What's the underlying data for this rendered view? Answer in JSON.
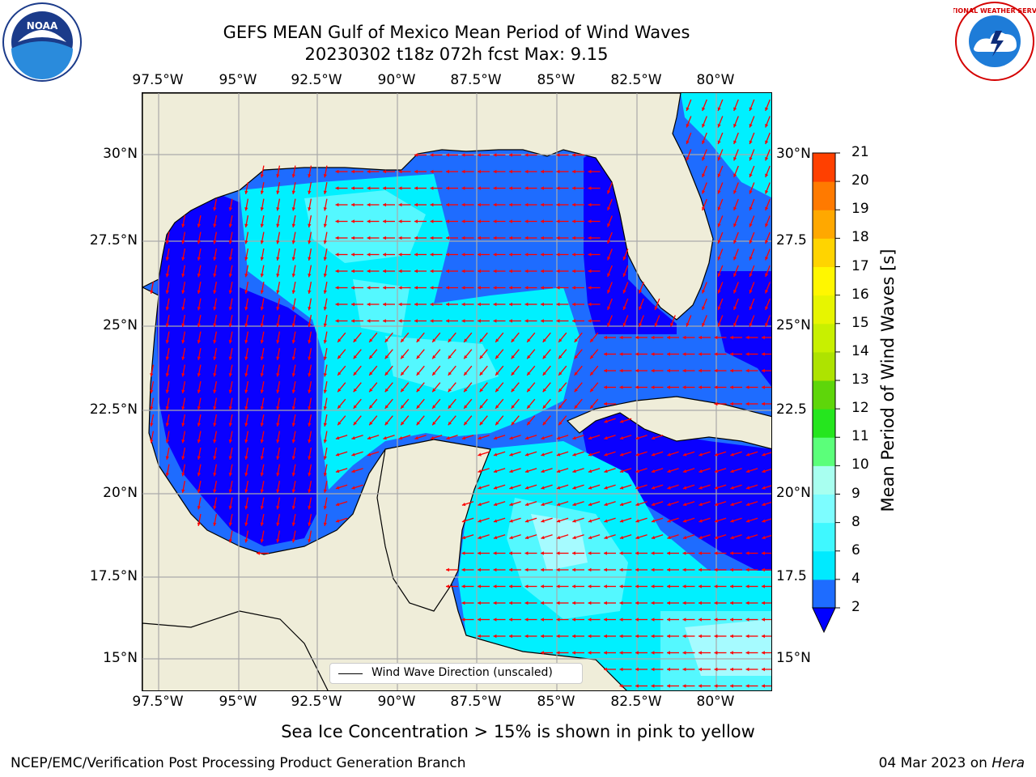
{
  "header": {
    "title_line1": "GEFS MEAN Gulf of Mexico Mean Period of Wind Waves",
    "title_line2": "20230302 t18z 072h fcst   Max: 9.15"
  },
  "axes": {
    "lon_labels": [
      "97.5°W",
      "95°W",
      "92.5°W",
      "90°W",
      "87.5°W",
      "85°W",
      "82.5°W",
      "80°W"
    ],
    "lat_labels_left": [
      "30°N",
      "27.5°N",
      "25°N",
      "22.5°N",
      "20°N",
      "17.5°N",
      "15°N"
    ],
    "lat_labels_right": [
      "30°N",
      "27.5",
      "25°N",
      "22.5",
      "20°N",
      "17.5",
      "15°N"
    ]
  },
  "legend": {
    "label": "Wind Wave Direction (unscaled)"
  },
  "colorbar": {
    "title": "Mean Period of Wind Waves [s]",
    "ticks": [
      "2",
      "4",
      "6",
      "8",
      "9",
      "10",
      "11",
      "12",
      "13",
      "14",
      "15",
      "16",
      "17",
      "18",
      "19",
      "20",
      "21"
    ],
    "colors": [
      "#1e6cff",
      "#00eaff",
      "#3ff8ff",
      "#7dfdff",
      "#a8fff0",
      "#5bff7a",
      "#25e61e",
      "#5ed60a",
      "#aee300",
      "#c8f000",
      "#e7f500",
      "#fff700",
      "#ffd400",
      "#ffa800",
      "#ff7a00",
      "#ff4000",
      "#ff0000"
    ],
    "under_color": "#0000ff"
  },
  "colors": {
    "land": "#efedd9",
    "band_2_4": "#1e6cff",
    "band_below_2": "#0a00ff",
    "band_4_6": "#00f0ff",
    "band_6_8": "#54f8ff",
    "band_8_9": "#a6fbff",
    "arrow": "#ff0000"
  },
  "notes": {
    "ice": "Sea Ice Concentration > 15% is shown in pink to yellow"
  },
  "footer": {
    "left": "NCEP/EMC/Verification Post Processing Product Generation Branch",
    "right_date": "04 Mar 2023 on",
    "right_machine": "Hera"
  },
  "logos": {
    "left": "NOAA",
    "right": "NATIONAL WEATHER SERVICE"
  }
}
